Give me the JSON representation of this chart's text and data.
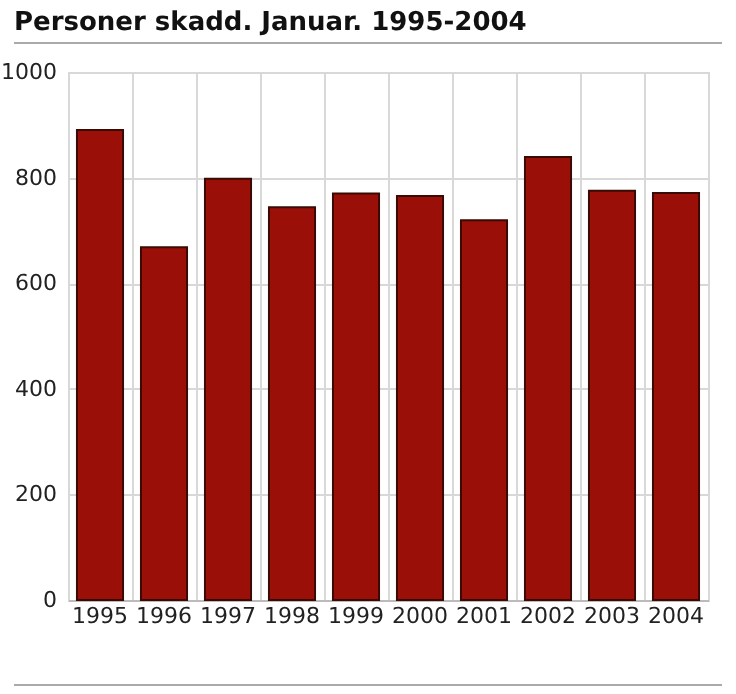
{
  "chart_data": {
    "type": "bar",
    "title": "Personer skadd. Januar. 1995-2004",
    "categories": [
      "1995",
      "1996",
      "1997",
      "1998",
      "1999",
      "2000",
      "2001",
      "2002",
      "2003",
      "2004"
    ],
    "values": [
      890,
      668,
      798,
      744,
      770,
      765,
      719,
      839,
      775,
      771
    ],
    "color": "#9a0f07",
    "ylim": [
      0,
      1000
    ],
    "yticks": [
      0,
      200,
      400,
      600,
      800,
      1000
    ],
    "grid": true
  }
}
